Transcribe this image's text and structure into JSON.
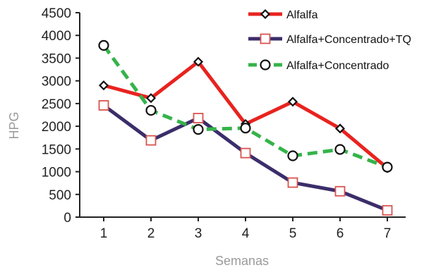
{
  "chart_data": {
    "type": "line",
    "xlabel": "Semanas",
    "ylabel": "HPG",
    "x": [
      1,
      2,
      3,
      4,
      5,
      6,
      7
    ],
    "x_tick_labels": [
      "1",
      "2",
      "3",
      "4",
      "5",
      "6",
      "7"
    ],
    "ylim": [
      0,
      4500
    ],
    "y_ticks": [
      0,
      500,
      1000,
      1500,
      2000,
      2500,
      3000,
      3500,
      4000,
      4500
    ],
    "y_tick_labels": [
      "0",
      "500",
      "1000",
      "1500",
      "2000",
      "2500",
      "3000",
      "3500",
      "4000",
      "4500"
    ],
    "grid": false,
    "legend_position": "top-right",
    "series": [
      {
        "name": "Alfalfa",
        "values": [
          2900,
          2620,
          3420,
          2050,
          2540,
          1950,
          1080
        ],
        "color": "#e8231f",
        "line": "solid",
        "marker": "diamond"
      },
      {
        "name": "Alfalfa+Concentrado+TQ",
        "values": [
          2460,
          1690,
          2180,
          1410,
          760,
          570,
          150
        ],
        "color": "#3b2d6a",
        "line": "solid",
        "marker": "square"
      },
      {
        "name": "Alfalfa+Concentrado",
        "values": [
          3780,
          2350,
          1930,
          1960,
          1350,
          1490,
          1100
        ],
        "color": "#35b34a",
        "line": "dashed",
        "marker": "circle"
      }
    ]
  }
}
